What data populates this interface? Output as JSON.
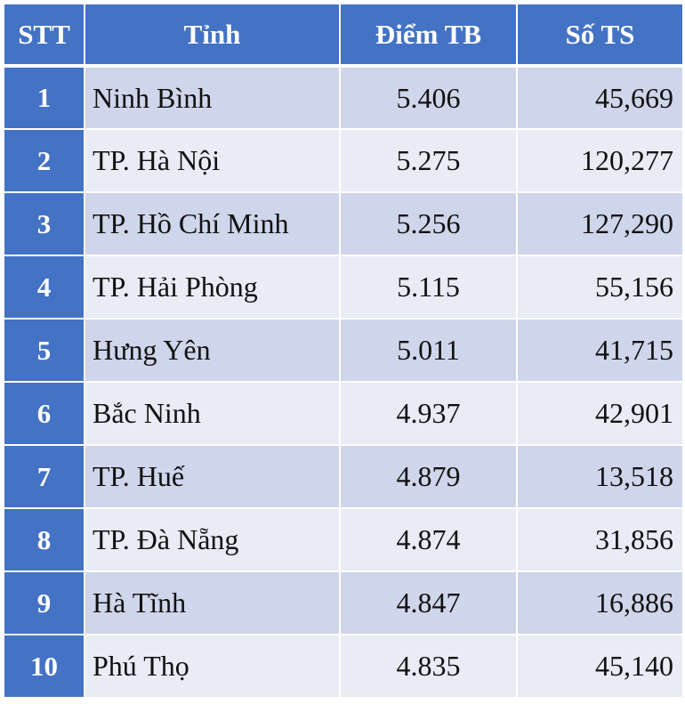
{
  "table": {
    "headers": [
      "STT",
      "Tỉnh",
      "Điểm TB",
      "Số TS"
    ],
    "rows": [
      {
        "stt": "1",
        "province": "Ninh Bình",
        "score": "5.406",
        "count": "45,669"
      },
      {
        "stt": "2",
        "province": "TP. Hà Nội",
        "score": "5.275",
        "count": "120,277"
      },
      {
        "stt": "3",
        "province": "TP. Hồ Chí Minh",
        "score": "5.256",
        "count": "127,290"
      },
      {
        "stt": "4",
        "province": "TP. Hải Phòng",
        "score": "5.115",
        "count": "55,156"
      },
      {
        "stt": "5",
        "province": "Hưng Yên",
        "score": "5.011",
        "count": "41,715"
      },
      {
        "stt": "6",
        "province": "Bắc Ninh",
        "score": "4.937",
        "count": "42,901"
      },
      {
        "stt": "7",
        "province": "TP. Huế",
        "score": "4.879",
        "count": "13,518"
      },
      {
        "stt": "8",
        "province": "TP. Đà Nẵng",
        "score": "4.874",
        "count": "31,856"
      },
      {
        "stt": "9",
        "province": "Hà Tĩnh",
        "score": "4.847",
        "count": "16,886"
      },
      {
        "stt": "10",
        "province": "Phú Thọ",
        "score": "4.835",
        "count": "45,140"
      }
    ]
  },
  "colors": {
    "header_bg": "#4472c4",
    "row_band_dark": "#cfd5ea",
    "row_band_light": "#e9ebf5"
  }
}
